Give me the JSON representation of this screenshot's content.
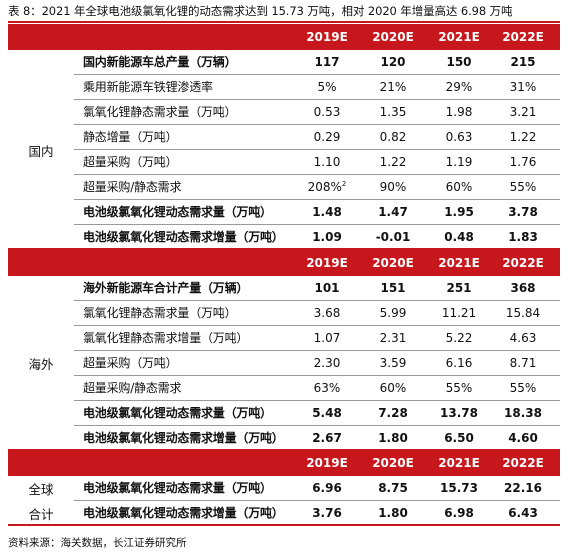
{
  "caption": "表 8：2021 年全球电池级氯氧化锂的动态需求达到 15.73 万吨，相对 2020 年增量高达 6.98 万吨",
  "years": [
    "2019E",
    "2020E",
    "2021E",
    "2022E"
  ],
  "sections": [
    {
      "group": "国内",
      "rows": [
        {
          "label": "国内新能源车总产量（万辆）",
          "values": [
            "117",
            "120",
            "150",
            "215"
          ],
          "bold": true
        },
        {
          "label": "乘用新能源车铁锂渗透率",
          "values": [
            "5%",
            "21%",
            "29%",
            "31%"
          ],
          "bold": false
        },
        {
          "label": "氯氧化锂静态需求量（万吨）",
          "values": [
            "0.53",
            "1.35",
            "1.98",
            "3.21"
          ],
          "bold": false
        },
        {
          "label": "静态增量（万吨）",
          "values": [
            "0.29",
            "0.82",
            "0.63",
            "1.22"
          ],
          "bold": false
        },
        {
          "label": "超量采购（万吨）",
          "values": [
            "1.10",
            "1.22",
            "1.19",
            "1.76"
          ],
          "bold": false
        },
        {
          "label": "超量采购/静态需求",
          "values": [
            "208%",
            "90%",
            "60%",
            "55%"
          ],
          "bold": false,
          "footnote": "2"
        },
        {
          "label": "电池级氯氧化锂动态需求量（万吨）",
          "values": [
            "1.48",
            "1.47",
            "1.95",
            "3.78"
          ],
          "bold": true
        },
        {
          "label": "电池级氯氧化锂动态需求增量（万吨）",
          "values": [
            "1.09",
            "-0.01",
            "0.48",
            "1.83"
          ],
          "bold": true
        }
      ]
    },
    {
      "group": "海外",
      "rows": [
        {
          "label": "海外新能源车合计产量（万辆）",
          "values": [
            "101",
            "151",
            "251",
            "368"
          ],
          "bold": true
        },
        {
          "label": "氯氧化锂静态需求量（万吨）",
          "values": [
            "3.68",
            "5.99",
            "11.21",
            "15.84"
          ],
          "bold": false
        },
        {
          "label": "氯氧化锂静态需求增量（万吨）",
          "values": [
            "1.07",
            "2.31",
            "5.22",
            "4.63"
          ],
          "bold": false
        },
        {
          "label": "超量采购（万吨）",
          "values": [
            "2.30",
            "3.59",
            "6.16",
            "8.71"
          ],
          "bold": false
        },
        {
          "label": "超量采购/静态需求",
          "values": [
            "63%",
            "60%",
            "55%",
            "55%"
          ],
          "bold": false
        },
        {
          "label": "电池级氯氧化锂动态需求量（万吨）",
          "values": [
            "5.48",
            "7.28",
            "13.78",
            "18.38"
          ],
          "bold": true
        },
        {
          "label": "电池级氯氧化锂动态需求增量（万吨）",
          "values": [
            "2.67",
            "1.80",
            "6.50",
            "4.60"
          ],
          "bold": true
        }
      ]
    },
    {
      "group_lines": [
        "全球",
        "合计"
      ],
      "rows": [
        {
          "label": "电池级氯氧化锂动态需求量（万吨）",
          "values": [
            "6.96",
            "8.75",
            "15.73",
            "22.16"
          ],
          "bold": true
        },
        {
          "label": "电池级氯氧化锂动态需求增量（万吨）",
          "values": [
            "3.76",
            "1.80",
            "6.98",
            "6.43"
          ],
          "bold": true
        }
      ]
    }
  ],
  "source": "资料来源：海关数据，长江证券研究所",
  "colors": {
    "accent": "#c8161d",
    "row_divider": "#9a9a9a",
    "band_text": "#ffffff"
  }
}
